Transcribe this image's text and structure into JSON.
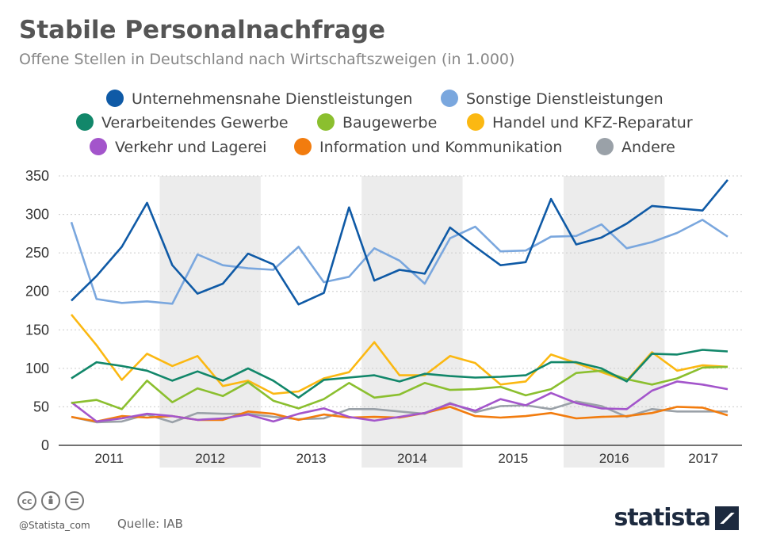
{
  "header": {
    "title": "Stabile Personalnachfrage",
    "subtitle": "Offene Stellen in Deutschland nach Wirtschaftszweigen (in 1.000)"
  },
  "footer": {
    "handle": "@Statista_com",
    "source": "Quelle: IAB",
    "brand": "statista",
    "license_icons": [
      "cc-icon",
      "by-icon",
      "nd-icon"
    ]
  },
  "chart_data": {
    "type": "line",
    "x": [
      "2011-Q1",
      "2011-Q2",
      "2011-Q3",
      "2011-Q4",
      "2012-Q1",
      "2012-Q2",
      "2012-Q3",
      "2012-Q4",
      "2013-Q1",
      "2013-Q2",
      "2013-Q3",
      "2013-Q4",
      "2014-Q1",
      "2014-Q2",
      "2014-Q3",
      "2014-Q4",
      "2015-Q1",
      "2015-Q2",
      "2015-Q3",
      "2015-Q4",
      "2016-Q1",
      "2016-Q2",
      "2016-Q3",
      "2016-Q4",
      "2017-Q1",
      "2017-Q2",
      "2017-Q3"
    ],
    "year_labels": [
      "2011",
      "2012",
      "2013",
      "2014",
      "2015",
      "2016",
      "2017"
    ],
    "ylim": [
      0,
      350
    ],
    "yticks": [
      0,
      50,
      100,
      150,
      200,
      250,
      300,
      350
    ],
    "grid": true,
    "legend_position": "top",
    "series": [
      {
        "name": "Unternehmensnahe Dienstleistungen",
        "color": "#0f5aa6",
        "values": [
          188,
          220,
          258,
          315,
          234,
          197,
          210,
          249,
          235,
          183,
          198,
          309,
          214,
          228,
          223,
          283,
          258,
          234,
          238,
          320,
          261,
          270,
          288,
          311,
          308,
          305,
          345
        ]
      },
      {
        "name": "Sonstige Dienstleistungen",
        "color": "#7aa7de",
        "values": [
          290,
          190,
          185,
          187,
          184,
          248,
          234,
          230,
          228,
          258,
          212,
          219,
          256,
          240,
          210,
          269,
          284,
          252,
          253,
          271,
          272,
          287,
          256,
          264,
          276,
          293,
          271
        ]
      },
      {
        "name": "Verarbeitendes Gewerbe",
        "color": "#12876a",
        "values": [
          87,
          108,
          103,
          97,
          84,
          96,
          84,
          100,
          84,
          62,
          85,
          88,
          91,
          83,
          93,
          90,
          88,
          89,
          91,
          108,
          108,
          100,
          83,
          119,
          118,
          124,
          122
        ]
      },
      {
        "name": "Baugewerbe",
        "color": "#8bbf2f",
        "values": [
          55,
          59,
          47,
          84,
          56,
          74,
          64,
          82,
          58,
          48,
          60,
          81,
          62,
          66,
          81,
          72,
          73,
          76,
          65,
          73,
          94,
          97,
          86,
          79,
          87,
          101,
          102
        ]
      },
      {
        "name": "Handel und KFZ-Reparatur",
        "color": "#fbb812",
        "values": [
          170,
          130,
          85,
          119,
          103,
          116,
          77,
          84,
          67,
          70,
          87,
          95,
          134,
          91,
          91,
          116,
          107,
          79,
          83,
          118,
          107,
          95,
          84,
          121,
          97,
          104,
          102
        ]
      },
      {
        "name": "Verkehr und Lagerei",
        "color": "#a355cb",
        "values": [
          56,
          31,
          35,
          41,
          38,
          33,
          35,
          40,
          31,
          41,
          48,
          37,
          32,
          37,
          42,
          54,
          45,
          60,
          52,
          68,
          55,
          48,
          47,
          71,
          83,
          79,
          73
        ]
      },
      {
        "name": "Information und Kommunikation",
        "color": "#f27c0e",
        "values": [
          37,
          31,
          38,
          36,
          38,
          33,
          33,
          44,
          41,
          33,
          40,
          36,
          37,
          36,
          42,
          50,
          38,
          36,
          38,
          42,
          35,
          37,
          38,
          42,
          50,
          49,
          39
        ]
      },
      {
        "name": "Andere",
        "color": "#9aa1a8",
        "values": [
          37,
          30,
          31,
          40,
          30,
          42,
          41,
          41,
          37,
          34,
          35,
          47,
          47,
          44,
          41,
          55,
          43,
          51,
          52,
          47,
          57,
          51,
          37,
          47,
          44,
          44,
          44
        ]
      }
    ]
  }
}
